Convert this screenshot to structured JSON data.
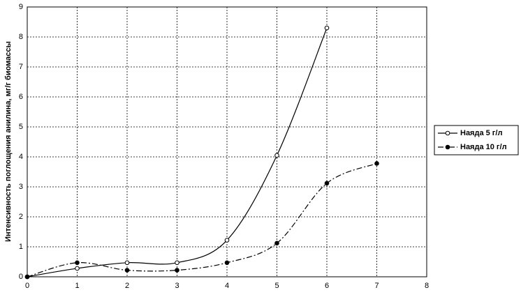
{
  "chart_data": {
    "type": "line",
    "y_label": "Интенсивность поглощения анилина, мг/г биомассы",
    "x": [
      0,
      1,
      2,
      3,
      4,
      5,
      6,
      7
    ],
    "series": [
      {
        "name": "Наяда 5 г/л",
        "color": "#000000",
        "line_style": "solid",
        "marker": "open",
        "values": [
          0,
          0.28,
          0.47,
          0.47,
          1.22,
          4.05,
          8.3,
          null
        ]
      },
      {
        "name": "Наяда 10 г/л",
        "color": "#000000",
        "line_style": "dashdot",
        "marker": "filled",
        "values": [
          0,
          0.47,
          0.22,
          0.22,
          0.47,
          1.12,
          3.12,
          3.78
        ]
      }
    ],
    "xlim": [
      0,
      8
    ],
    "xticks": [
      0,
      1,
      2,
      3,
      4,
      5,
      6,
      7,
      8
    ],
    "ylim": [
      0,
      9
    ],
    "yticks": [
      0,
      1,
      2,
      3,
      4,
      5,
      6,
      7,
      8,
      9
    ],
    "grid": true,
    "smooth": true,
    "legend": "right"
  }
}
